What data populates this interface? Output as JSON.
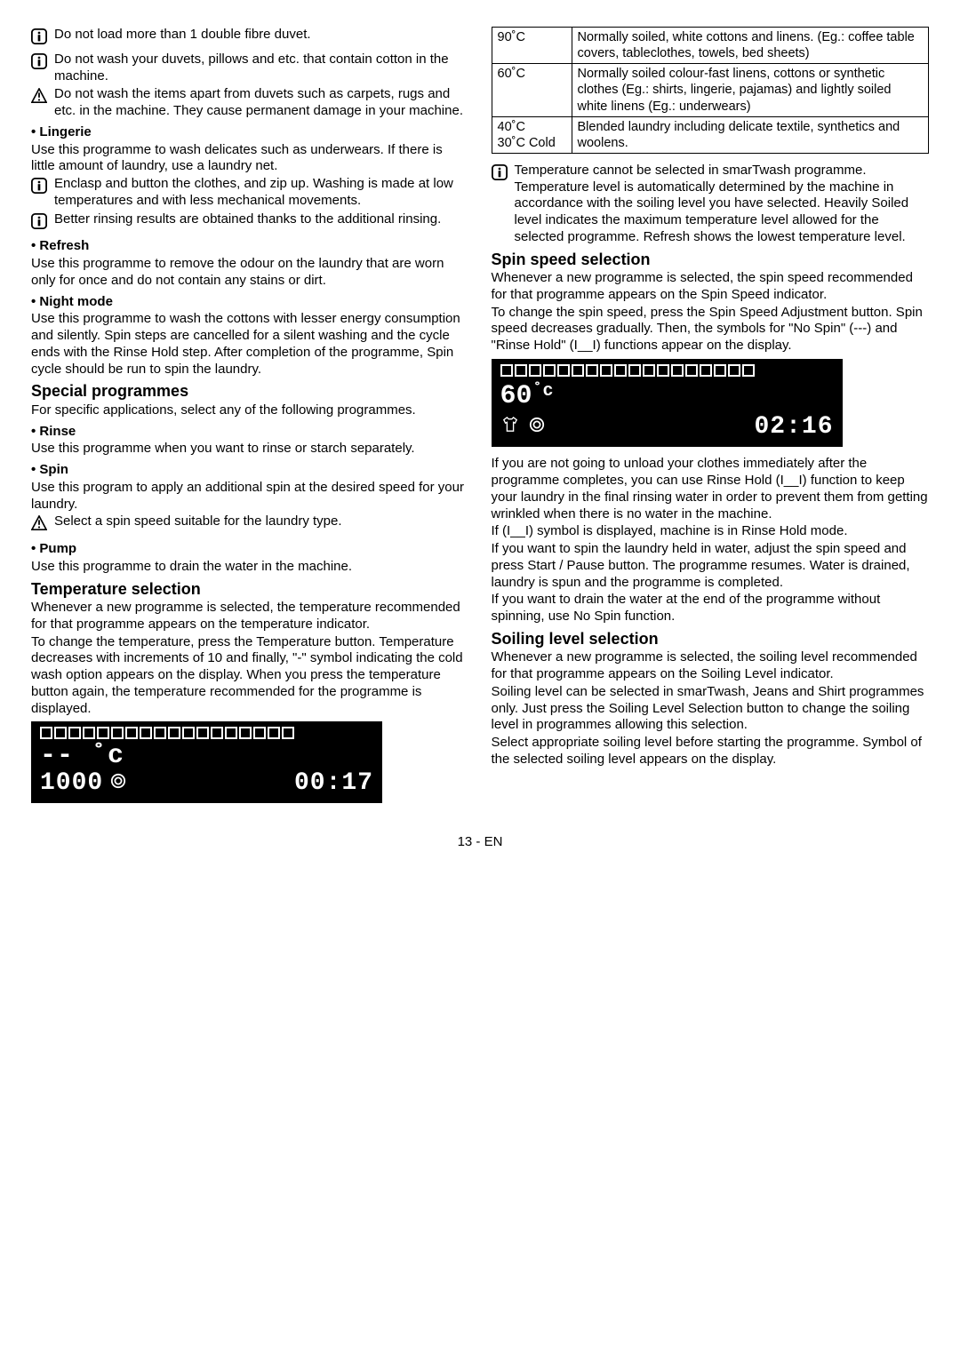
{
  "left": {
    "notes": [
      "Do not load more than 1 double fibre duvet.",
      "Do not wash your duvets, pillows and etc. that contain cotton in the machine.",
      "Do not wash the items apart from duvets such as carpets, rugs and etc. in the machine. They cause permanent damage in your machine."
    ],
    "lingerie_h": "• Lingerie",
    "lingerie_p": "Use this programme to wash delicates such as underwears. If there is little amount of laundry, use a laundry net.",
    "lingerie_notes": [
      "Enclasp and button the clothes, and zip up. Washing is made at low temperatures and with less mechanical movements.",
      "Better rinsing results are obtained thanks to the additional rinsing."
    ],
    "refresh_h": "• Refresh",
    "refresh_p": "Use this programme to remove the odour on the laundry that are worn only for once and do not contain any stains or dirt.",
    "night_h": "• Night mode",
    "night_p": "Use this programme to wash the cottons with lesser energy consumption and silently. Spin steps are cancelled for a silent washing and the cycle ends with the Rinse Hold step. After completion of the programme, Spin cycle should be run to spin the laundry.",
    "special_h": "Special programmes",
    "special_p": "For specific applications, select any of the following programmes.",
    "rinse_h": "• Rinse",
    "rinse_p": "Use this programme when you want to rinse or starch separately.",
    "spin_h": "• Spin",
    "spin_p": "Use this program to apply an additional spin at the desired speed for your laundry.",
    "spin_note": "Select a spin speed suitable for the laundry type.",
    "pump_h": "• Pump",
    "pump_p": "Use this programme to drain the water in the machine.",
    "temp_h": "Temperature selection",
    "temp_p1": "Whenever a new programme is selected, the temperature recommended for that programme appears on the temperature indicator.",
    "temp_p2": "To change the temperature, press the Temperature button. Temperature decreases with increments of 10 and finally, \"-\" symbol indicating the cold wash option appears on the display. When you press the temperature button again, the temperature recommended for the programme is displayed."
  },
  "display1": {
    "line2": "-- ˚c",
    "spin": "1000",
    "time": "00:17"
  },
  "table": {
    "rows": [
      {
        "t": "90˚C",
        "d": "Normally soiled, white cottons and linens. (Eg.: coffee table covers, tableclothes, towels, bed sheets)"
      },
      {
        "t": "60˚C",
        "d": "Normally soiled colour-fast linens, cottons or synthetic clothes (Eg.: shirts, lingerie, pajamas) and lightly soiled white linens (Eg.: underwears)"
      },
      {
        "t": "40˚C\n30˚C Cold",
        "d": "Blended laundry including delicate textile, synthetics and woolens."
      }
    ]
  },
  "right": {
    "temp_note": "Temperature cannot be selected in smarTwash programme. Temperature level is automatically determined by the machine in accordance with the soiling level you have selected. Heavily Soiled level indicates the maximum temperature level allowed for the selected programme. Refresh shows the lowest temperature level.",
    "spin_h": "Spin speed selection",
    "spin_p1": "Whenever a new programme is selected, the spin speed recommended for that programme appears on the Spin Speed indicator.",
    "spin_p2": "To change the spin speed, press the Spin Speed Adjustment button. Spin speed decreases gradually. Then, the symbols for \"No Spin\" (---) and \"Rinse Hold\" (I__I) functions appear on the display.",
    "spin_p3": "If you are not going to unload your clothes immediately after the programme completes, you can use Rinse Hold (I__I)  function to keep your laundry in the final rinsing water in order to prevent them from getting wrinkled when there is no water in the machine.",
    "spin_p4": "If (I__I) symbol is displayed, machine is in Rinse Hold mode.",
    "spin_p5": "If you want to spin the laundry held in water, adjust the spin speed and press Start / Pause button. The programme resumes. Water is drained, laundry is spun and the programme is completed.",
    "spin_p6": "If you want to drain the water at the end of the programme without spinning, use No Spin function.",
    "soil_h": "Soiling level selection",
    "soil_p1": "Whenever a new programme is selected, the soiling level recommended for that programme appears on the Soiling Level indicator.",
    "soil_p2": "Soiling level can be selected in smarTwash, Jeans and Shirt programmes only. Just press the Soiling Level Selection button to change the soiling level in programmes allowing this selection.",
    "soil_p3": "Select appropriate soiling level before starting the programme. Symbol of the selected soiling level appears on the display."
  },
  "display2": {
    "temp": "60",
    "time": "02:16"
  },
  "footer": "13 - EN"
}
